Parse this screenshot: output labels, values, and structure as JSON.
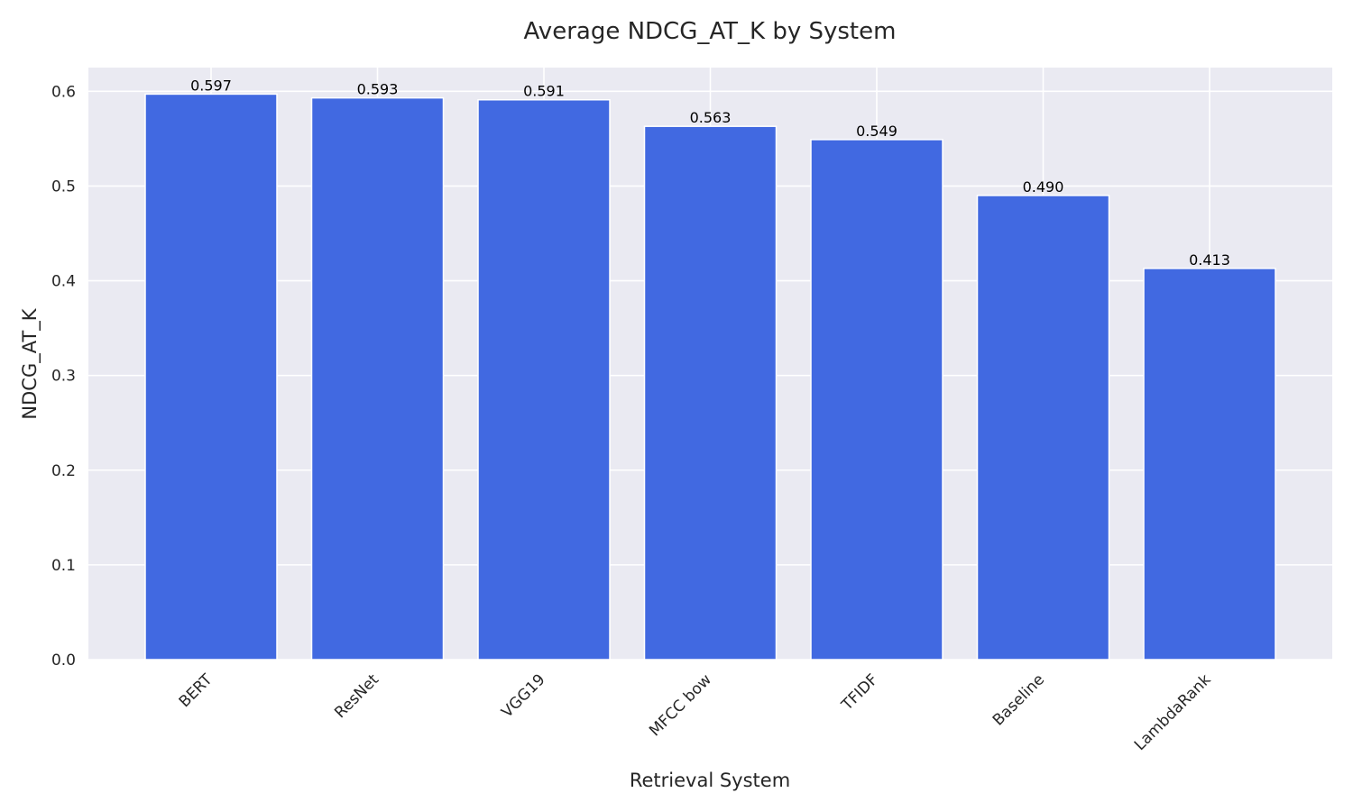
{
  "chart_data": {
    "type": "bar",
    "title": "Average NDCG_AT_K by System",
    "xlabel": "Retrieval System",
    "ylabel": "NDCG_AT_K",
    "categories": [
      "BERT",
      "ResNet",
      "VGG19",
      "MFCC bow",
      "TFIDF",
      "Baseline",
      "LambdaRank"
    ],
    "values": [
      0.597,
      0.593,
      0.591,
      0.563,
      0.549,
      0.49,
      0.413
    ],
    "value_labels": [
      "0.597",
      "0.593",
      "0.591",
      "0.563",
      "0.549",
      "0.490",
      "0.413"
    ],
    "ylim": [
      0,
      0.625
    ],
    "yticks": [
      0.0,
      0.1,
      0.2,
      0.3,
      0.4,
      0.5,
      0.6
    ],
    "ytick_labels": [
      "0.0",
      "0.1",
      "0.2",
      "0.3",
      "0.4",
      "0.5",
      "0.6"
    ],
    "grid": true,
    "legend": "none",
    "colors": {
      "bar": "#4169e1",
      "background": "#eaeaf2",
      "grid": "#ffffff"
    }
  }
}
